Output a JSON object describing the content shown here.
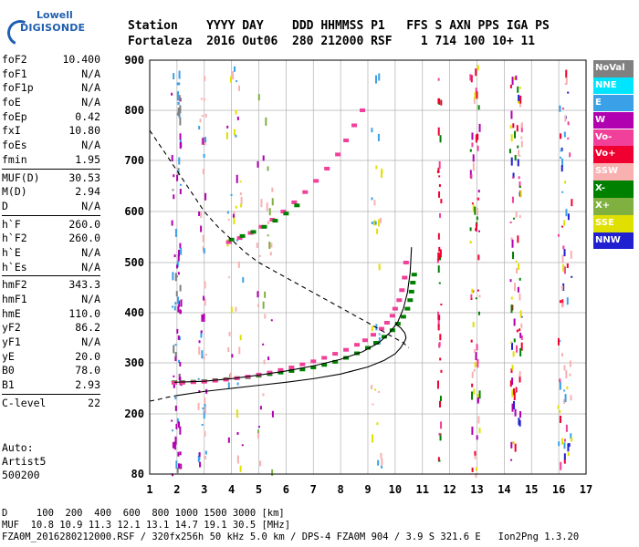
{
  "logo": {
    "line1": "Lowell",
    "line2": "DIGISONDE"
  },
  "header": {
    "labels": "Station    YYYY DAY    DDD HHMMSS P1   FFS S AXN PPS IGA PS",
    "values": "Fortaleza  2016 Out06  280 212000 RSF    1 714 100 10+ 11"
  },
  "params": [
    {
      "k": "foF2",
      "v": "10.400"
    },
    {
      "k": "foF1",
      "v": "N/A"
    },
    {
      "k": "foF1p",
      "v": "N/A"
    },
    {
      "k": "foE",
      "v": "N/A"
    },
    {
      "k": "foEp",
      "v": "0.42"
    },
    {
      "k": "fxI",
      "v": "10.80"
    },
    {
      "k": "foEs",
      "v": "N/A"
    },
    {
      "k": "fmin",
      "v": "1.95"
    },
    {
      "k": "MUF(D)",
      "v": "30.53"
    },
    {
      "k": "M(D)",
      "v": "2.94"
    },
    {
      "k": "D",
      "v": "N/A"
    },
    {
      "k": "h`F",
      "v": "260.0"
    },
    {
      "k": "h`F2",
      "v": "260.0"
    },
    {
      "k": "h`E",
      "v": "N/A"
    },
    {
      "k": "h`Es",
      "v": "N/A"
    },
    {
      "k": "hmF2",
      "v": "343.3"
    },
    {
      "k": "hmF1",
      "v": "N/A"
    },
    {
      "k": "hmE",
      "v": "110.0"
    },
    {
      "k": "yF2",
      "v": "86.2"
    },
    {
      "k": "yF1",
      "v": "N/A"
    },
    {
      "k": "yE",
      "v": "20.0"
    },
    {
      "k": "B0",
      "v": "78.0"
    },
    {
      "k": "B1",
      "v": "2.93"
    },
    {
      "k": "C-level",
      "v": "22"
    }
  ],
  "auto": {
    "line1": "Auto:",
    "line2": "Artist5",
    "line3": "500200"
  },
  "legend": [
    {
      "label": "NoVal",
      "color": "#808080"
    },
    {
      "label": "NNE",
      "color": "#00e5ff"
    },
    {
      "label": "E",
      "color": "#3aa0e8"
    },
    {
      "label": "W",
      "color": "#b000b0"
    },
    {
      "label": "Vo-",
      "color": "#f0409a"
    },
    {
      "label": "Vo+",
      "color": "#f00030"
    },
    {
      "label": "SSW",
      "color": "#f8b0b0"
    },
    {
      "label": "X-",
      "color": "#008000"
    },
    {
      "label": "X+",
      "color": "#80b040"
    },
    {
      "label": "SSE",
      "color": "#e0e000"
    },
    {
      "label": "NNW",
      "color": "#2020d0"
    }
  ],
  "footer": {
    "line1": "D     100  200  400  600  800 1000 1500 3000 [km]",
    "line2": "MUF  10.8 10.9 11.3 12.1 13.1 14.7 19.1 30.5 [MHz]",
    "line3": "FZA0M_2016280212000.RSF / 320fx256h 50 kHz 5.0 km / DPS-4 FZA0M 904 / 3.9 S 321.6 E   Ion2Png 1.3.20"
  },
  "chart_data": {
    "type": "scatter",
    "xlim": [
      1,
      17
    ],
    "ylim": [
      80,
      900
    ],
    "xticks": [
      "1",
      "2",
      "3",
      "4",
      "5",
      "6",
      "7",
      "8",
      "9",
      "10",
      "11",
      "12",
      "13",
      "14",
      "15",
      "16",
      "17"
    ],
    "yticks": [
      "80",
      "200",
      "300",
      "400",
      "500",
      "600",
      "700",
      "800",
      "900"
    ],
    "grid": true,
    "series": [
      {
        "name": "X-",
        "color": "#008000",
        "x": [
          1.9,
          2.2,
          2.6,
          3.0,
          3.4,
          3.8,
          4.2,
          4.6,
          5.0,
          5.4,
          5.8,
          6.2,
          6.6,
          7.0,
          7.4,
          7.8,
          8.2,
          8.6,
          9.0,
          9.3,
          9.6,
          9.9,
          10.1,
          10.3,
          10.45,
          10.55,
          10.6,
          10.65,
          10.7
        ],
        "y": [
          262,
          262,
          263,
          264,
          266,
          268,
          270,
          272,
          275,
          278,
          281,
          284,
          287,
          291,
          296,
          302,
          310,
          319,
          330,
          340,
          352,
          365,
          378,
          392,
          408,
          425,
          442,
          460,
          476
        ]
      },
      {
        "name": "Vo-",
        "color": "#f0409a",
        "x": [
          1.9,
          2.2,
          2.6,
          3.0,
          3.4,
          3.8,
          4.2,
          4.6,
          5.0,
          5.4,
          5.8,
          6.2,
          6.6,
          7.0,
          7.4,
          7.8,
          8.2,
          8.6,
          8.9,
          9.2,
          9.5,
          9.7,
          9.9,
          10.0,
          10.15,
          10.25,
          10.35,
          10.4
        ],
        "y": [
          261,
          261,
          262,
          263,
          265,
          267,
          270,
          273,
          277,
          281,
          286,
          291,
          297,
          303,
          310,
          318,
          326,
          336,
          345,
          356,
          368,
          380,
          394,
          408,
          425,
          445,
          470,
          500
        ]
      },
      {
        "name": "Vo- (2F)",
        "color": "#f0409a",
        "x": [
          3.9,
          4.3,
          4.7,
          5.1,
          5.5,
          5.9,
          6.3,
          6.7,
          7.1,
          7.5,
          7.9,
          8.2,
          8.5,
          8.8
        ],
        "y": [
          540,
          548,
          558,
          570,
          584,
          600,
          618,
          638,
          660,
          684,
          712,
          740,
          770,
          800
        ]
      },
      {
        "name": "X- (2F)",
        "color": "#008000",
        "x": [
          4.0,
          4.4,
          4.8,
          5.2,
          5.6,
          6.0,
          6.4
        ],
        "y": [
          545,
          552,
          560,
          570,
          582,
          596,
          612
        ]
      }
    ],
    "curves": [
      {
        "name": "true height profile",
        "style": "solid",
        "x": [
          2.0,
          3.0,
          4.0,
          5.0,
          6.0,
          7.0,
          8.0,
          9.0,
          9.6,
          10.0,
          10.2,
          10.35,
          10.4,
          10.35,
          10.2,
          10.0
        ],
        "y": [
          236,
          244,
          250,
          256,
          262,
          269,
          278,
          292,
          305,
          318,
          330,
          343,
          350,
          360,
          370,
          378
        ]
      },
      {
        "name": "trace fit",
        "style": "solid",
        "x": [
          1.9,
          3.0,
          4.0,
          5.0,
          6.0,
          7.0,
          8.0,
          8.8,
          9.4,
          9.8,
          10.1,
          10.3,
          10.45,
          10.55,
          10.6
        ],
        "y": [
          262,
          264,
          269,
          276,
          284,
          294,
          307,
          322,
          340,
          360,
          382,
          408,
          440,
          480,
          530
        ]
      },
      {
        "name": "MUF curve",
        "style": "dashed",
        "x": [
          1.0,
          1.5,
          2.0,
          2.5,
          3.0,
          3.5,
          4.0,
          4.5,
          5.0,
          6.0,
          7.0,
          8.0,
          9.0,
          9.8,
          10.3,
          10.5
        ],
        "y": [
          760,
          720,
          680,
          640,
          600,
          570,
          545,
          520,
          500,
          470,
          440,
          410,
          380,
          355,
          340,
          330
        ]
      },
      {
        "name": "MUF lower",
        "style": "dashed",
        "x": [
          1.0,
          1.3,
          1.6,
          2.0
        ],
        "y": [
          225,
          228,
          232,
          236
        ]
      }
    ]
  }
}
